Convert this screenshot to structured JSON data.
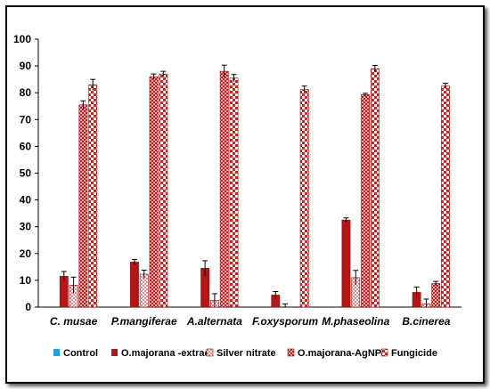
{
  "chart_data": {
    "type": "bar",
    "categories": [
      "C. musae",
      "P.mangiferae",
      "A.alternata",
      "F.oxysporum",
      "M.phaseolina",
      "B.cinerea"
    ],
    "ylim": [
      0,
      100
    ],
    "yticks": [
      0,
      10,
      20,
      30,
      40,
      50,
      60,
      70,
      80,
      90,
      100
    ],
    "title": "",
    "xlabel": "",
    "ylabel": "",
    "legend_position": "bottom",
    "grid": false,
    "series": [
      {
        "name": "Control",
        "color": "#1ba1e2",
        "pattern": "solid",
        "values": [
          0,
          0,
          0,
          0,
          0,
          0
        ],
        "errors": [
          0,
          0,
          0,
          0,
          0,
          0
        ]
      },
      {
        "name": "O.majorana -extract",
        "color": "#b81414",
        "pattern": "solid",
        "values": [
          11.5,
          16.8,
          14.5,
          4.5,
          32.5,
          5.5
        ],
        "errors": [
          1.8,
          1.0,
          2.8,
          1.3,
          0.8,
          2.0
        ]
      },
      {
        "name": "Silver nitrate",
        "color": "#d63030",
        "pattern": "dots",
        "values": [
          8.2,
          12.3,
          2.5,
          0,
          11.0,
          1.2
        ],
        "errors": [
          3.0,
          1.5,
          2.5,
          1.2,
          2.7,
          1.8
        ]
      },
      {
        "name": "O.majorana-AgNPs",
        "color": "#c01818",
        "pattern": "diamond",
        "values": [
          75.5,
          86.0,
          88.0,
          0,
          79.3,
          8.8
        ],
        "errors": [
          1.5,
          1.0,
          2.3,
          0,
          0.5,
          0.8
        ]
      },
      {
        "name": "Fungicide",
        "color": "#d62020",
        "pattern": "checker",
        "values": [
          83.0,
          87.0,
          85.5,
          81.2,
          89.0,
          82.5
        ],
        "errors": [
          2.0,
          1.0,
          1.3,
          1.3,
          1.2,
          1.0
        ]
      }
    ]
  }
}
